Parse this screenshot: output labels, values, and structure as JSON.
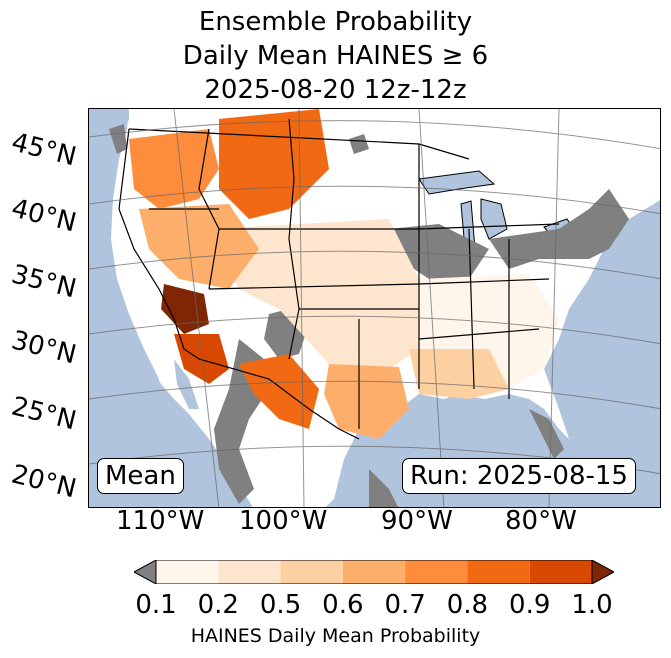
{
  "title": {
    "line1": "Ensemble Probability",
    "line2": "Daily Mean HAINES ≥ 6",
    "line3": "2025-08-20 12z-12z"
  },
  "map": {
    "ocean_color": "#b0c4de",
    "land_color": "#ffffff",
    "no_data_color": "#808080",
    "lat_labels": [
      "45°N",
      "40°N",
      "35°N",
      "30°N",
      "25°N",
      "20°N"
    ],
    "lon_labels": [
      "110°W",
      "100°W",
      "90°W",
      "80°W"
    ],
    "left_box": "Mean",
    "right_box": "Run: 2025-08-15",
    "regions": [
      {
        "name": "pacific-northwest",
        "level": 0.7
      },
      {
        "name": "northern-rockies",
        "level": 0.8
      },
      {
        "name": "great-basin",
        "level": 0.6
      },
      {
        "name": "mojave-southwest",
        "level": 1.0
      },
      {
        "name": "southern-arizona",
        "level": 0.8
      },
      {
        "name": "new-mexico-west-texas",
        "level": 0.7
      },
      {
        "name": "central-texas",
        "level": 0.6
      },
      {
        "name": "lower-mississippi-valley",
        "level": 0.5
      },
      {
        "name": "central-plains",
        "level": 0.2
      },
      {
        "name": "eastern-us",
        "level": 0.1
      }
    ]
  },
  "colorbar": {
    "label": "HAINES Daily Mean Probability",
    "ticks": [
      "0.1",
      "0.2",
      "0.5",
      "0.6",
      "0.7",
      "0.8",
      "0.9",
      "1.0"
    ],
    "under_color": "#808080",
    "over_color": "#7f2704",
    "colors": [
      "#fff5eb",
      "#fee6ce",
      "#fdd0a2",
      "#fdae6b",
      "#fd8d3c",
      "#f16913",
      "#d94801"
    ]
  }
}
